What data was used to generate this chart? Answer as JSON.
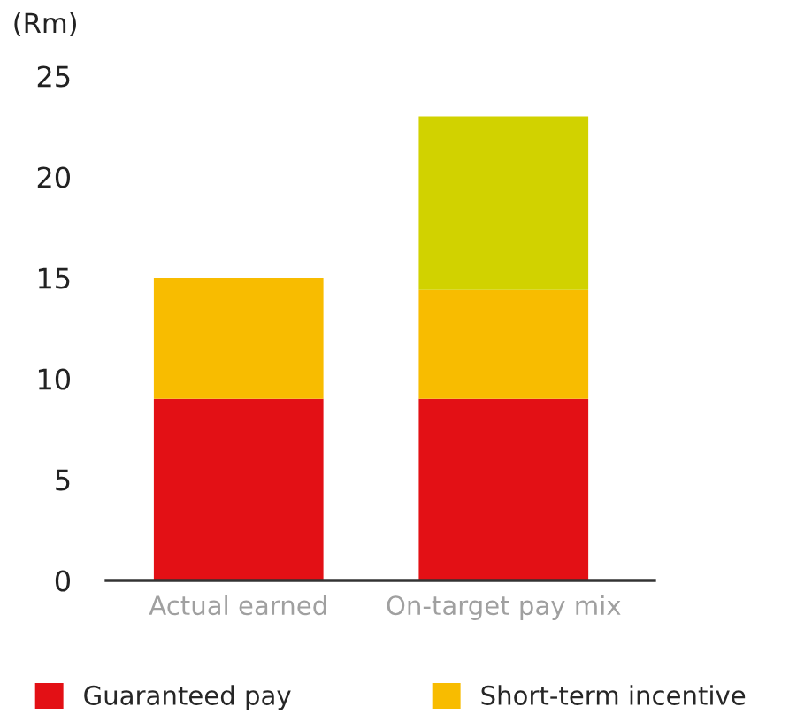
{
  "chart_data": {
    "type": "bar",
    "stacked": true,
    "ylabel": "(Rm)",
    "categories": [
      "Actual earned",
      "On-target pay mix"
    ],
    "series": [
      {
        "name": "Guaranteed pay",
        "color": "#e31015",
        "values": [
          9.0,
          9.0
        ]
      },
      {
        "name": "Short-term incentive",
        "color": "#f8bc00",
        "values": [
          6.0,
          5.4
        ]
      },
      {
        "color": "#d1d200",
        "values": [
          null,
          8.6
        ]
      }
    ],
    "ylim": [
      0,
      25
    ],
    "yticks": [
      0,
      5,
      10,
      15,
      20,
      25
    ],
    "grid": false,
    "legend": "bottom"
  }
}
